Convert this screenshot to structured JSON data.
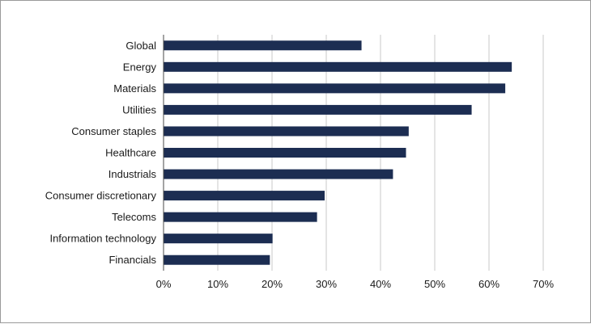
{
  "chart_data": {
    "type": "bar",
    "orientation": "horizontal",
    "categories": [
      "Global",
      "Energy",
      "Materials",
      "Utilities",
      "Consumer staples",
      "Healthcare",
      "Industrials",
      "Consumer discretionary",
      "Telecoms",
      "Information technology",
      "Financials"
    ],
    "values": [
      36.5,
      64.2,
      63.0,
      56.8,
      45.2,
      44.7,
      42.3,
      29.7,
      28.3,
      20.1,
      19.6
    ],
    "xlim": [
      0,
      70
    ],
    "xticks": [
      "0%",
      "10%",
      "20%",
      "30%",
      "40%",
      "50%",
      "60%",
      "70%"
    ],
    "grid": "vertical",
    "bar_color": "#1c2d52",
    "grid_color": "#c8c8c8"
  }
}
